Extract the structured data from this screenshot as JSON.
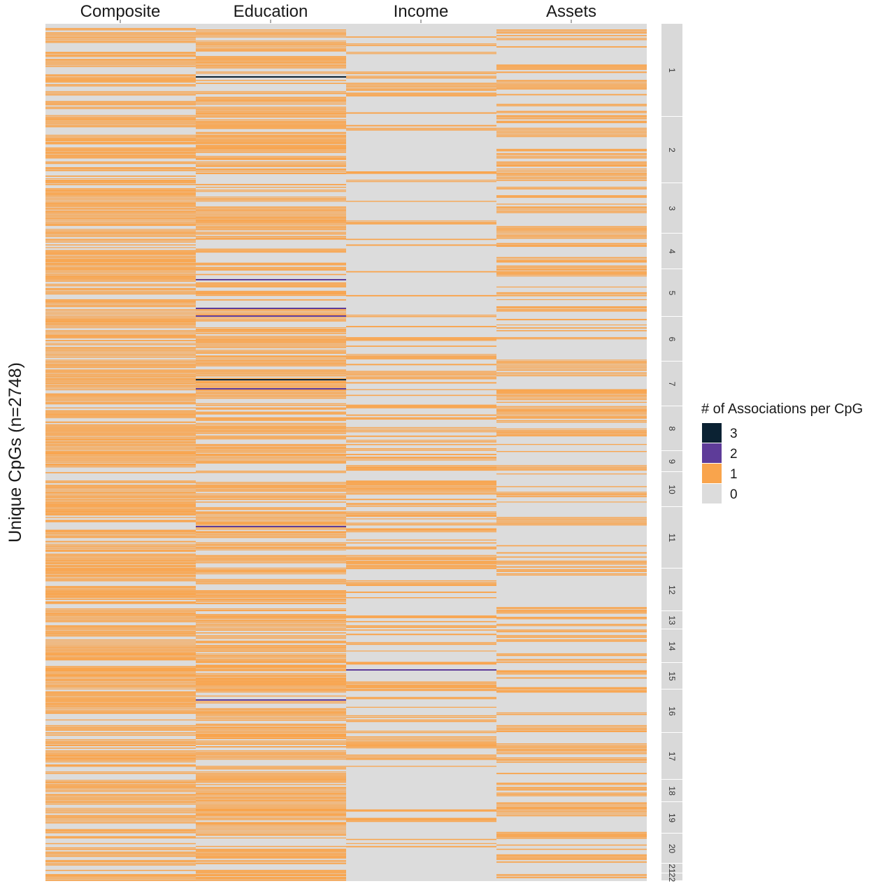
{
  "chart_data": {
    "type": "heatmap",
    "x_categories": [
      "Composite",
      "Education",
      "Income",
      "Assets"
    ],
    "ylabel": "Unique CpGs (n=2748)",
    "n_cpgs": 2748,
    "chromosome_facets": [
      "1",
      "2",
      "3",
      "4",
      "5",
      "6",
      "7",
      "8",
      "9",
      "10",
      "11",
      "12",
      "13",
      "14",
      "15",
      "16",
      "17",
      "18",
      "19",
      "20",
      "21",
      "22"
    ],
    "legend": {
      "title": "# of Associations per CpG",
      "items": [
        {
          "label": "3",
          "color": "#0b2233"
        },
        {
          "label": "2",
          "color": "#5e3c99"
        },
        {
          "label": "1",
          "color": "#f9a44c"
        },
        {
          "label": "0",
          "color": "#dcdcdc"
        }
      ]
    },
    "column_rate_of_1": {
      "Composite": 0.62,
      "Education": 0.55,
      "Income": 0.32,
      "Assets": 0.36
    },
    "colors": {
      "zero": "#dcdcdc",
      "one": "#f9a44c",
      "two": "#5e3c99",
      "three": "#0b2233",
      "strip": "#d9d9d9"
    }
  }
}
